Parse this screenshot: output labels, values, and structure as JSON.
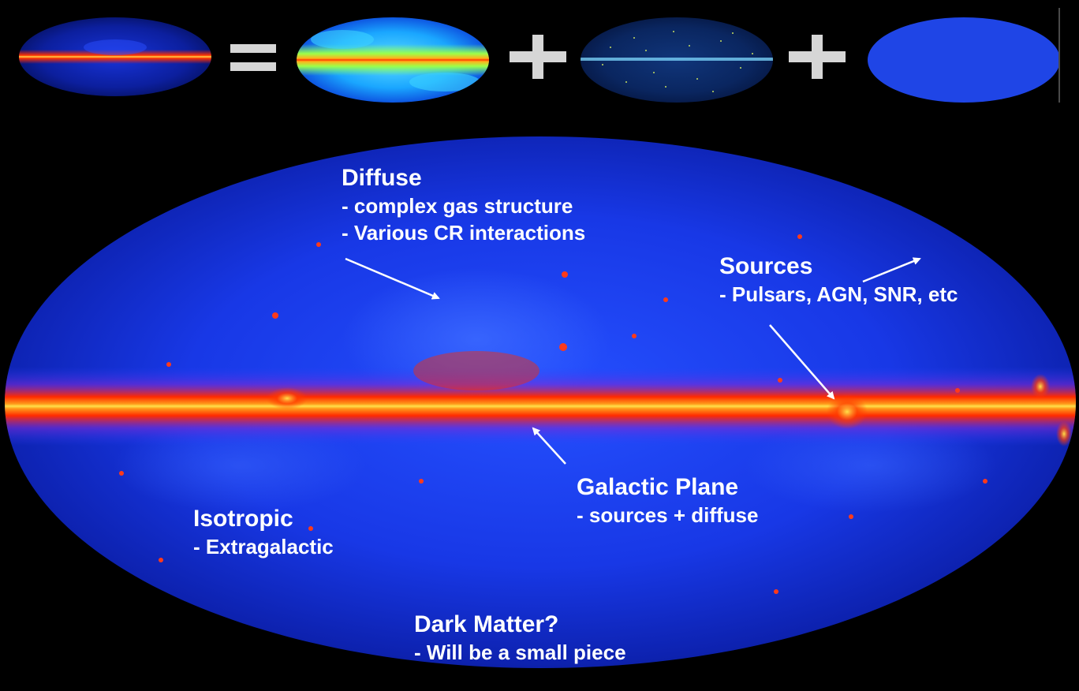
{
  "components": {
    "total_sky": "total-sky-map",
    "diffuse": "diffuse-emission-map",
    "sources": "point-sources-map",
    "isotropic": "isotropic-background-map"
  },
  "operators": [
    "=",
    "+",
    "+"
  ],
  "annotations": {
    "diffuse": {
      "heading": "Diffuse",
      "lines": [
        "- complex gas structure",
        "- Various CR interactions"
      ]
    },
    "sources": {
      "heading": "Sources",
      "lines": [
        "- Pulsars, AGN, SNR, etc"
      ]
    },
    "galactic_plane": {
      "heading": "Galactic Plane",
      "lines": [
        "- sources + diffuse"
      ]
    },
    "isotropic": {
      "heading": "Isotropic",
      "lines": [
        "- Extragalactic"
      ]
    },
    "dark_matter": {
      "heading": "Dark Matter?",
      "lines": [
        "- Will be a small piece"
      ]
    }
  },
  "colors": {
    "background": "#000000",
    "sky_blue": "#1a3cff",
    "deep_blue": "#0a1fbf",
    "plane_red": "#ff2a00",
    "plane_yellow": "#ffe14a",
    "operator_gray": "#d6d6d6",
    "isotropic_blue": "#1f45e6"
  }
}
